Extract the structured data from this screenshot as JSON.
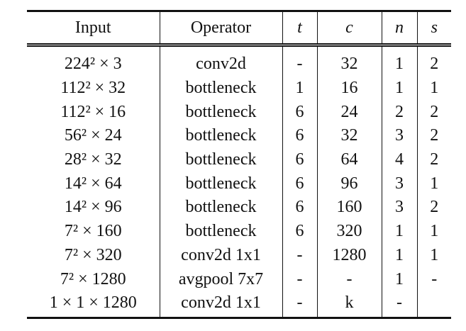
{
  "table": {
    "header": [
      "Input",
      "Operator",
      "t",
      "c",
      "n",
      "s"
    ],
    "rows": [
      [
        "224² × 3",
        "conv2d",
        "-",
        "32",
        "1",
        "2"
      ],
      [
        "112² × 32",
        "bottleneck",
        "1",
        "16",
        "1",
        "1"
      ],
      [
        "112² × 16",
        "bottleneck",
        "6",
        "24",
        "2",
        "2"
      ],
      [
        "56² × 24",
        "bottleneck",
        "6",
        "32",
        "3",
        "2"
      ],
      [
        "28² × 32",
        "bottleneck",
        "6",
        "64",
        "4",
        "2"
      ],
      [
        "14² × 64",
        "bottleneck",
        "6",
        "96",
        "3",
        "1"
      ],
      [
        "14² × 96",
        "bottleneck",
        "6",
        "160",
        "3",
        "2"
      ],
      [
        "7² × 160",
        "bottleneck",
        "6",
        "320",
        "1",
        "1"
      ],
      [
        "7² × 320",
        "conv2d 1x1",
        "-",
        "1280",
        "1",
        "1"
      ],
      [
        "7² × 1280",
        "avgpool 7x7",
        "-",
        "-",
        "1",
        "-"
      ],
      [
        "1 × 1 × 1280",
        "conv2d 1x1",
        "-",
        "k",
        "-",
        null
      ]
    ]
  }
}
